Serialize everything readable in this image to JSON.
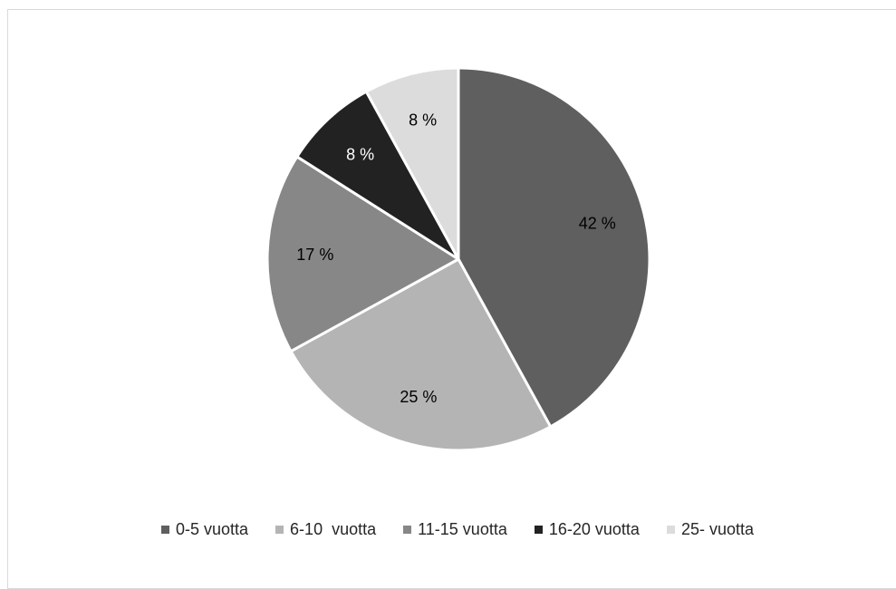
{
  "chart_data": {
    "type": "pie",
    "title": "",
    "categories": [
      "0-5 vuotta",
      "6-10  vuotta",
      "11-15 vuotta",
      "16-20 vuotta",
      "25- vuotta"
    ],
    "values": [
      42,
      25,
      17,
      8,
      8
    ],
    "data_labels": [
      "42 %",
      "25 %",
      "17 %",
      "8 %",
      "8 %"
    ],
    "colors": [
      "#5f5f5f",
      "#b4b4b4",
      "#878787",
      "#222222",
      "#dcdcdc"
    ],
    "label_colors": [
      "#000000",
      "#000000",
      "#000000",
      "#ffffff",
      "#000000"
    ],
    "legend_position": "bottom",
    "start_angle": "12 o'clock",
    "direction": "clockwise"
  }
}
